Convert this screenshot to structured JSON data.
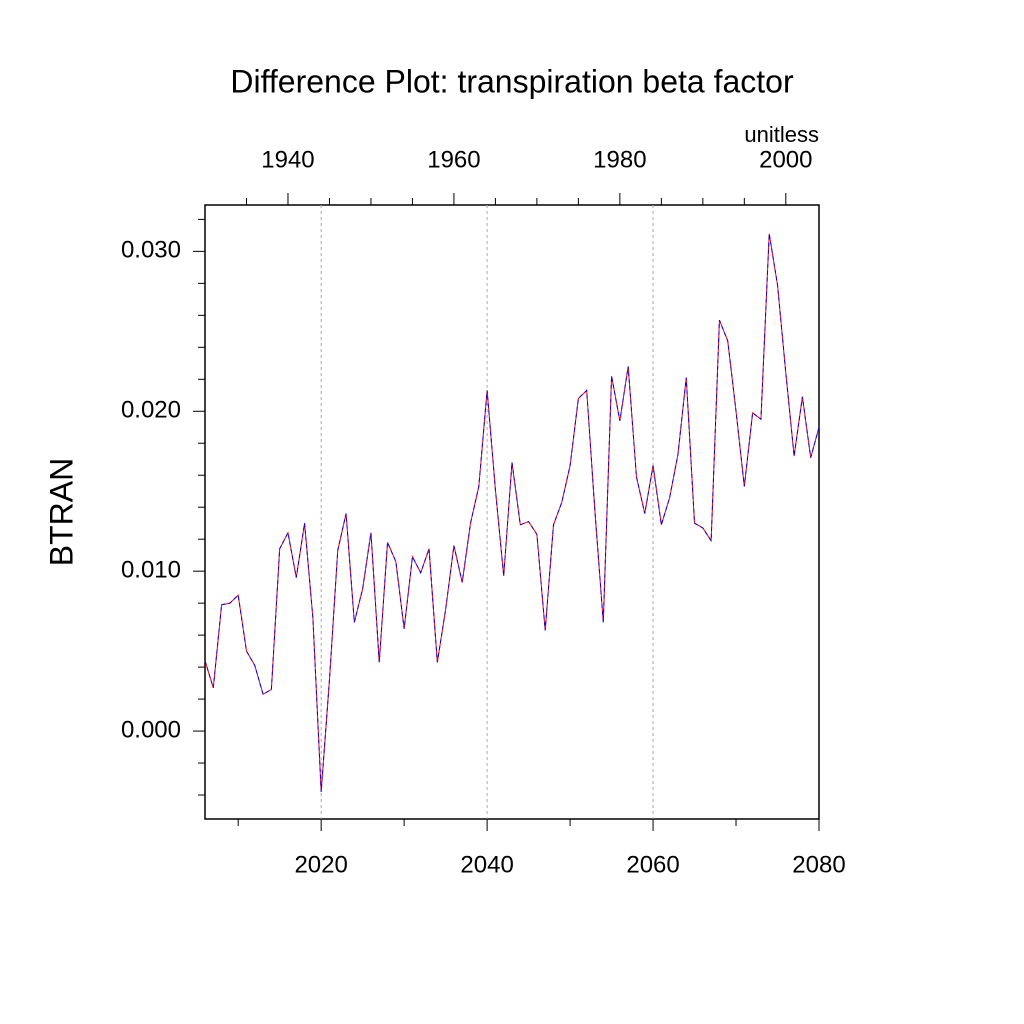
{
  "chart_data": {
    "type": "line",
    "title": "Difference Plot: transpiration beta factor",
    "units": "unitless",
    "ylabel": "BTRAN",
    "x": [
      2006,
      2007,
      2008,
      2009,
      2010,
      2011,
      2012,
      2013,
      2014,
      2015,
      2016,
      2017,
      2018,
      2019,
      2020,
      2021,
      2022,
      2023,
      2024,
      2025,
      2026,
      2027,
      2028,
      2029,
      2030,
      2031,
      2032,
      2033,
      2034,
      2035,
      2036,
      2037,
      2038,
      2039,
      2040,
      2041,
      2042,
      2043,
      2044,
      2045,
      2046,
      2047,
      2048,
      2049,
      2050,
      2051,
      2052,
      2053,
      2054,
      2055,
      2056,
      2057,
      2058,
      2059,
      2060,
      2061,
      2062,
      2063,
      2064,
      2065,
      2066,
      2067,
      2068,
      2069,
      2070,
      2071,
      2072,
      2073,
      2074,
      2075,
      2076,
      2077,
      2078,
      2079,
      2080
    ],
    "series": [
      {
        "color": "#ff0000",
        "dash": false,
        "values": [
          0.0044,
          0.0027,
          0.0079,
          0.008,
          0.0085,
          0.005,
          0.0041,
          0.0023,
          0.0026,
          0.0114,
          0.0124,
          0.0096,
          0.013,
          0.0071,
          -0.0038,
          0.0032,
          0.0113,
          0.0136,
          0.0068,
          0.0089,
          0.0124,
          0.0043,
          0.0118,
          0.0106,
          0.0064,
          0.0109,
          0.0099,
          0.0114,
          0.0043,
          0.0076,
          0.0116,
          0.0093,
          0.013,
          0.0153,
          0.0213,
          0.0151,
          0.0097,
          0.0168,
          0.0129,
          0.0131,
          0.0123,
          0.0063,
          0.0129,
          0.0143,
          0.0166,
          0.0208,
          0.0213,
          0.0137,
          0.0068,
          0.0222,
          0.0194,
          0.0228,
          0.0159,
          0.0136,
          0.0166,
          0.0129,
          0.0146,
          0.0173,
          0.0221,
          0.013,
          0.0127,
          0.0119,
          0.0257,
          0.0244,
          0.02,
          0.0153,
          0.0199,
          0.0195,
          0.0311,
          0.0279,
          0.0224,
          0.0172,
          0.0209,
          0.0171,
          0.019
        ]
      },
      {
        "color": "#0000ff",
        "dash": true,
        "values": [
          0.0044,
          0.0027,
          0.0079,
          0.008,
          0.0085,
          0.005,
          0.0041,
          0.0023,
          0.0026,
          0.0114,
          0.0124,
          0.0096,
          0.013,
          0.0071,
          -0.0038,
          0.0032,
          0.0113,
          0.0136,
          0.0068,
          0.0089,
          0.0124,
          0.0043,
          0.0118,
          0.0106,
          0.0064,
          0.0109,
          0.0099,
          0.0114,
          0.0043,
          0.0076,
          0.0116,
          0.0093,
          0.013,
          0.0153,
          0.0213,
          0.0151,
          0.0097,
          0.0168,
          0.0129,
          0.0131,
          0.0123,
          0.0063,
          0.0129,
          0.0143,
          0.0166,
          0.0208,
          0.0213,
          0.0137,
          0.0068,
          0.0222,
          0.0194,
          0.0228,
          0.0159,
          0.0136,
          0.0166,
          0.0129,
          0.0146,
          0.0173,
          0.0221,
          0.013,
          0.0127,
          0.0119,
          0.0257,
          0.0244,
          0.02,
          0.0153,
          0.0199,
          0.0195,
          0.0311,
          0.0279,
          0.0224,
          0.0172,
          0.0209,
          0.0171,
          0.019
        ]
      }
    ],
    "xlim": [
      2006,
      2080
    ],
    "xticks": [
      2020,
      2040,
      2060,
      2080
    ],
    "xticks_minor": [
      2010,
      2030,
      2050,
      2070
    ],
    "xtick_color": "#ff0000",
    "x2lim": [
      1930,
      2004
    ],
    "x2ticks": [
      1940,
      1960,
      1980,
      2000
    ],
    "x2ticks_minor": [
      1935,
      1945,
      1950,
      1955,
      1965,
      1970,
      1975,
      1985,
      1990,
      1995
    ],
    "x2tick_color": "#0000ff",
    "ylim": [
      -0.0055,
      0.0329
    ],
    "yticks": [
      {
        "value": 0,
        "label": "0.000"
      },
      {
        "value": 0.01,
        "label": "0.010"
      },
      {
        "value": 0.02,
        "label": "0.020"
      },
      {
        "value": 0.03,
        "label": "0.030"
      }
    ],
    "yticks_minor": [
      -0.004,
      -0.002,
      0.002,
      0.004,
      0.006,
      0.008,
      0.012,
      0.014,
      0.016,
      0.018,
      0.022,
      0.024,
      0.026,
      0.028,
      0.032
    ],
    "grid": true
  }
}
